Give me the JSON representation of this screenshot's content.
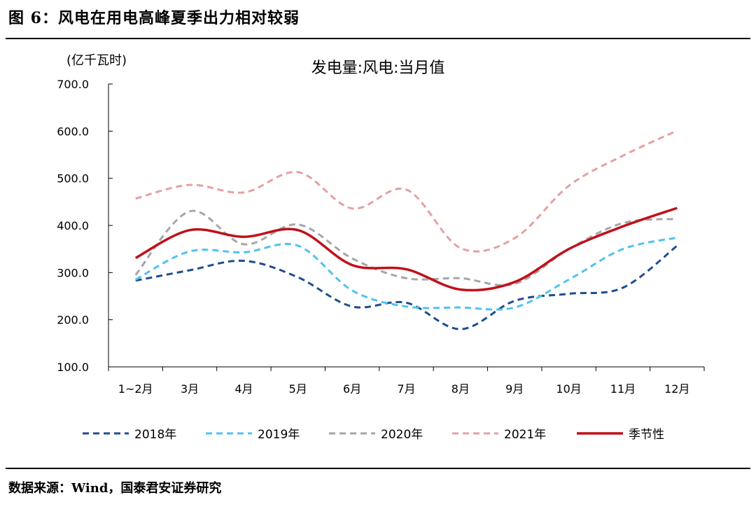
{
  "figure": {
    "title": "图 6：风电在用电高峰夏季出力相对较弱",
    "source": "数据来源：Wind，国泰君安证券研究"
  },
  "chart_data": {
    "type": "line",
    "title": "发电量:风电:当月值",
    "unit": "(亿千瓦时)",
    "xlabel": "",
    "ylabel": "",
    "categories": [
      "1~2月",
      "3月",
      "4月",
      "5月",
      "6月",
      "7月",
      "8月",
      "9月",
      "10月",
      "11月",
      "12月"
    ],
    "ylim": [
      100,
      700
    ],
    "yticks": [
      100,
      200,
      300,
      400,
      500,
      600,
      700
    ],
    "ytick_labels": [
      "100.0",
      "200.0",
      "300.0",
      "400.0",
      "500.0",
      "600.0",
      "700.0"
    ],
    "grid": false,
    "legend_position": "bottom",
    "series": [
      {
        "name": "2018年",
        "color": "#1f4e8c",
        "dash": true,
        "values": [
          283,
          305,
          325,
          290,
          228,
          236,
          180,
          240,
          255,
          268,
          357
        ]
      },
      {
        "name": "2019年",
        "color": "#4fc3f0",
        "dash": true,
        "values": [
          285,
          345,
          343,
          357,
          262,
          228,
          226,
          226,
          285,
          350,
          374
        ]
      },
      {
        "name": "2020年",
        "color": "#a6a6a6",
        "dash": true,
        "values": [
          295,
          430,
          360,
          402,
          330,
          288,
          288,
          276,
          350,
          405,
          414
        ]
      },
      {
        "name": "2021年",
        "color": "#e6a0a0",
        "dash": true,
        "values": [
          457,
          486,
          470,
          513,
          436,
          476,
          352,
          373,
          484,
          548,
          601
        ]
      },
      {
        "name": "季节性",
        "color": "#c0101a",
        "dash": false,
        "values": [
          331,
          390,
          376,
          390,
          316,
          307,
          264,
          280,
          350,
          398,
          437
        ]
      }
    ]
  }
}
